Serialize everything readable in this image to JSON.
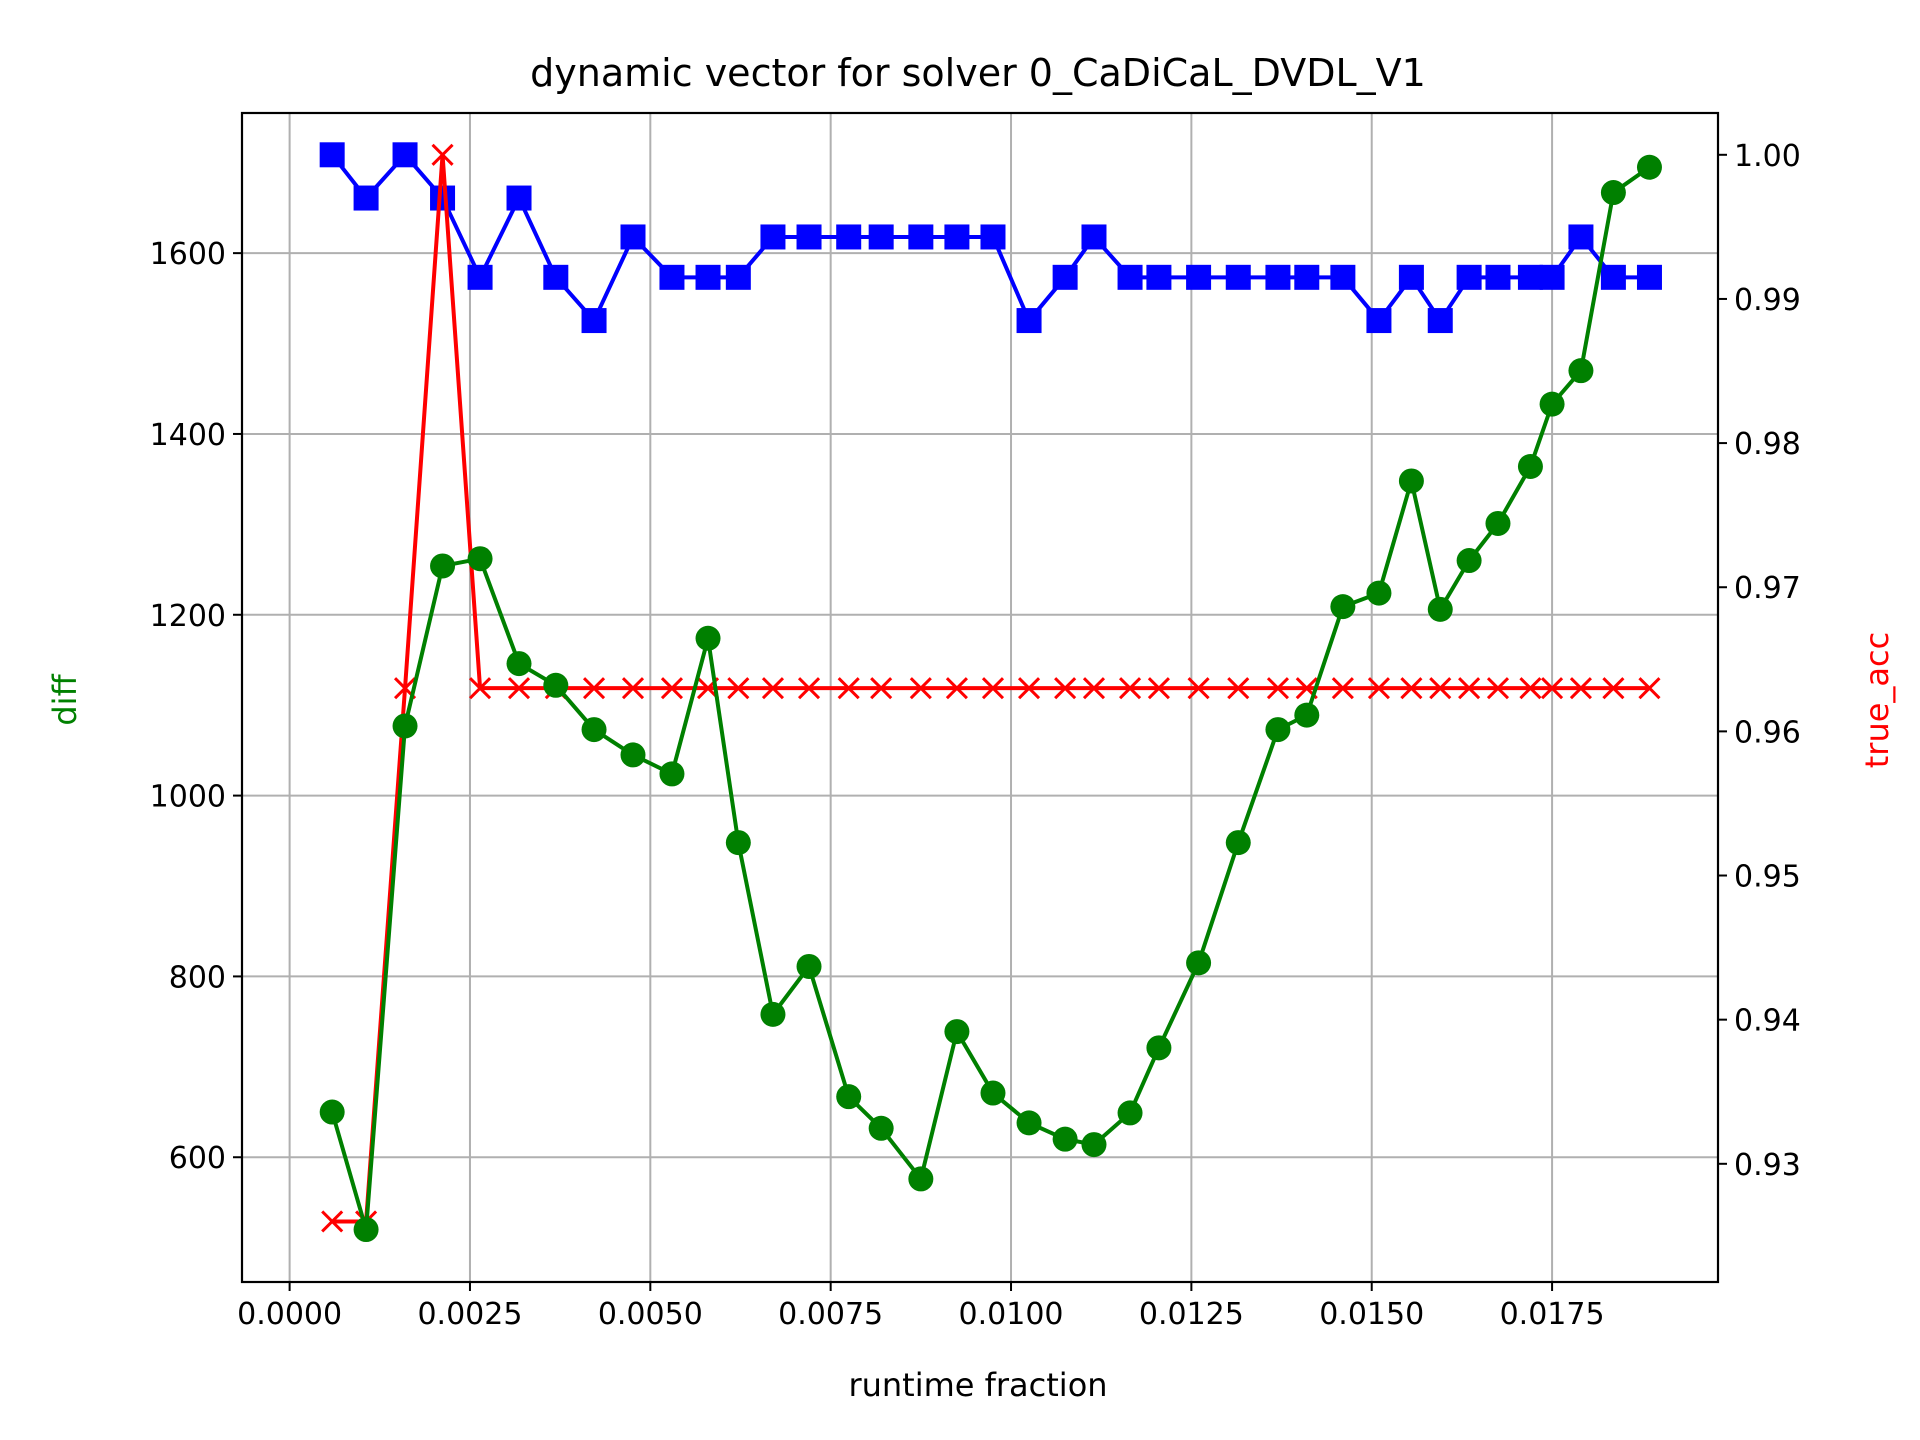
{
  "chart_data": {
    "type": "line",
    "title": "dynamic vector for solver 0_CaDiCaL_DVDL_V1",
    "xlabel": "runtime fraction",
    "ylabel_left": "diff",
    "ylabel_right": "true_acc",
    "grid": true,
    "xlim": [
      -0.00066,
      0.0198
    ],
    "ylim_left": [
      462,
      1755
    ],
    "ylim_right": [
      0.9218,
      1.0029
    ],
    "x_ticks": [
      "0.0000",
      "0.0025",
      "0.0050",
      "0.0075",
      "0.0100",
      "0.0125",
      "0.0150",
      "0.0175"
    ],
    "y_left_ticks": [
      "600",
      "800",
      "1000",
      "1200",
      "1400",
      "1600"
    ],
    "y_right_ticks": [
      "0.93",
      "0.94",
      "0.95",
      "0.96",
      "0.97",
      "0.98",
      "0.99",
      "1.00"
    ],
    "colors": {
      "diff": "#008000",
      "true_acc": "#ff0000",
      "blue_series": "#0000ff"
    },
    "x": [
      0.00059,
      0.00106,
      0.0016,
      0.00212,
      0.00264,
      0.00318,
      0.00369,
      0.00422,
      0.00476,
      0.0053,
      0.0058,
      0.00622,
      0.0067,
      0.0072,
      0.00775,
      0.0082,
      0.00875,
      0.00925,
      0.00975,
      0.01025,
      0.01075,
      0.01115,
      0.01165,
      0.01205,
      0.0126,
      0.01315,
      0.0137,
      0.0141,
      0.0146,
      0.0151,
      0.01555,
      0.01595,
      0.01635,
      0.01675,
      0.0172,
      0.0175,
      0.0179,
      0.01835,
      0.01885
    ],
    "series": [
      {
        "key": "diff",
        "axis": "left",
        "marker": "circle",
        "color": "#008000",
        "values": [
          650,
          520,
          1077,
          1254,
          1262,
          1146,
          1122,
          1073,
          1045,
          1024,
          1174,
          948,
          758,
          811,
          667,
          632,
          576,
          739,
          671,
          638,
          620,
          614,
          649,
          721,
          815,
          948,
          1073,
          1089,
          1209,
          1224,
          1348,
          1206,
          1260,
          1301,
          1364,
          1433,
          1470,
          1667,
          1695
        ]
      },
      {
        "key": "true_acc",
        "axis": "right",
        "marker": "x",
        "color": "#ff0000",
        "values": [
          0.926,
          0.926,
          0.963,
          1.0,
          0.963,
          0.963,
          0.963,
          0.963,
          0.963,
          0.963,
          0.963,
          0.963,
          0.963,
          0.963,
          0.963,
          0.963,
          0.963,
          0.963,
          0.963,
          0.963,
          0.963,
          0.963,
          0.963,
          0.963,
          0.963,
          0.963,
          0.963,
          0.963,
          0.963,
          0.963,
          0.963,
          0.963,
          0.963,
          0.963,
          0.963,
          0.963,
          0.963,
          0.963,
          0.963
        ]
      },
      {
        "key": "blue",
        "axis": "right",
        "marker": "square",
        "color": "#0000ff",
        "values": [
          1.0,
          0.997,
          1.0,
          0.997,
          0.9915,
          0.997,
          0.9915,
          0.9885,
          0.9943,
          0.9915,
          0.9915,
          0.9915,
          0.9943,
          0.9943,
          0.9943,
          0.9943,
          0.9943,
          0.9943,
          0.9943,
          0.9885,
          0.9915,
          0.9943,
          0.9915,
          0.9915,
          0.9915,
          0.9915,
          0.9915,
          0.9915,
          0.9915,
          0.9885,
          0.9915,
          0.9885,
          0.9915,
          0.9915,
          0.9915,
          0.9915,
          0.9943,
          0.9915,
          0.9915
        ]
      }
    ]
  }
}
